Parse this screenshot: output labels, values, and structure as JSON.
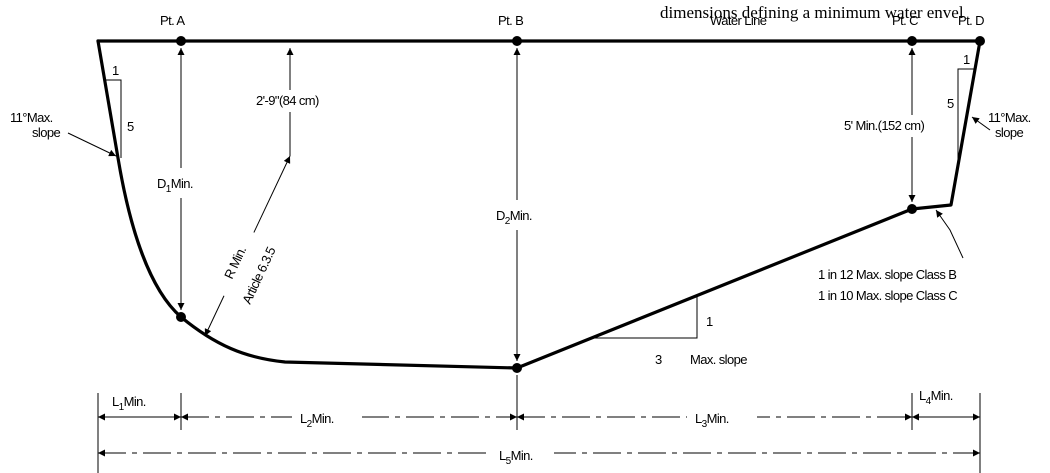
{
  "caption": "dimensions defining a minimum water envel",
  "points": {
    "a": "Pt. A",
    "b": "Pt. B",
    "c": "Pt. C",
    "d": "Pt. D"
  },
  "water_line": "Water Line",
  "depth_top": "2'-9\"(84 cm)",
  "depth_right": "5' Min.(152 cm)",
  "d1": {
    "main": "D",
    "sub": "1",
    "suffix": "Min."
  },
  "d2": {
    "main": "D",
    "sub": "2",
    "suffix": "Min."
  },
  "radius": {
    "line1": "R Min.",
    "line2": "Article 6.3.5"
  },
  "left_slope": {
    "angle": "11°Max.",
    "word": "slope",
    "rise": "1",
    "run": "5"
  },
  "right_slope": {
    "angle": "11°Max.",
    "word": "slope",
    "rise": "1",
    "run": "5"
  },
  "class_slopes": {
    "b": "1 in 12 Max. slope Class B",
    "c": "1 in 10 Max. slope Class C"
  },
  "floor_slope": {
    "rise": "1",
    "run": "3",
    "label": "Max. slope"
  },
  "lengths": {
    "l1": {
      "main": "L",
      "sub": "1",
      "suffix": "Min."
    },
    "l2": {
      "main": "L",
      "sub": "2",
      "suffix": "Min."
    },
    "l3": {
      "main": "L",
      "sub": "3",
      "suffix": "Min."
    },
    "l4": {
      "main": "L",
      "sub": "4",
      "suffix": "Min."
    },
    "l5": {
      "main": "L",
      "sub": "5",
      "suffix": "Min."
    }
  }
}
